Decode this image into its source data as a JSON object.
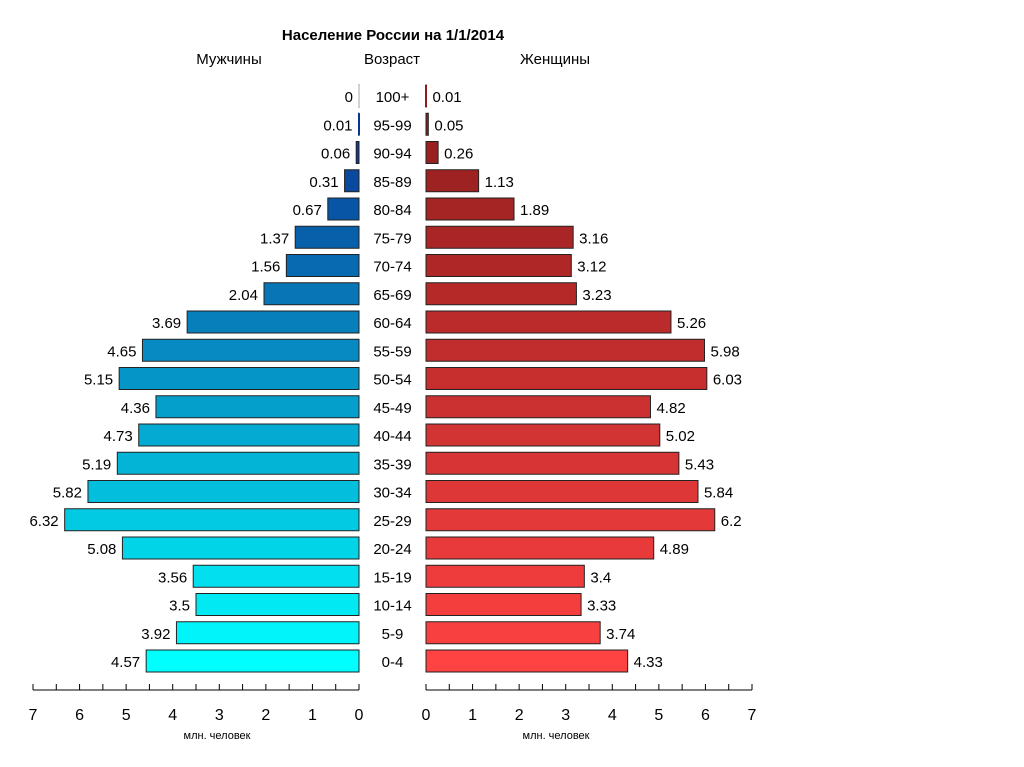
{
  "chart_data": {
    "type": "bar",
    "orientation": "horizontal-pyramid",
    "title": "Население России на 1/1/2014",
    "left_header": "Мужчины",
    "center_header": "Возраст",
    "right_header": "Женщины",
    "xlabel_left": "млн. человек",
    "xlabel_right": "млн. человек",
    "xlim": [
      0,
      7
    ],
    "ticks": [
      "0",
      "1",
      "2",
      "3",
      "4",
      "5",
      "6",
      "7"
    ],
    "categories": [
      "100+",
      "95-99",
      "90-94",
      "85-89",
      "80-84",
      "75-79",
      "70-74",
      "65-69",
      "60-64",
      "55-59",
      "50-54",
      "45-49",
      "40-44",
      "35-39",
      "30-34",
      "25-29",
      "20-24",
      "15-19",
      "10-14",
      "5-9",
      "0-4"
    ],
    "series": [
      {
        "name": "Мужчины",
        "side": "left",
        "color_top": "#0b2a8e",
        "color_bottom": "#00ffff",
        "values": [
          0,
          0.01,
          0.06,
          0.31,
          0.67,
          1.37,
          1.56,
          2.04,
          3.69,
          4.65,
          5.15,
          4.36,
          4.73,
          5.19,
          5.82,
          6.32,
          5.08,
          3.56,
          3.5,
          3.92,
          4.57
        ]
      },
      {
        "name": "Женщины",
        "side": "right",
        "color_top": "#8e1c1c",
        "color_bottom": "#ff4242",
        "values": [
          0.01,
          0.05,
          0.26,
          1.13,
          1.89,
          3.16,
          3.12,
          3.23,
          5.26,
          5.98,
          6.03,
          4.82,
          5.02,
          5.43,
          5.84,
          6.2,
          4.89,
          3.4,
          3.33,
          3.74,
          4.33
        ]
      }
    ],
    "grid": false,
    "legend": "none"
  }
}
